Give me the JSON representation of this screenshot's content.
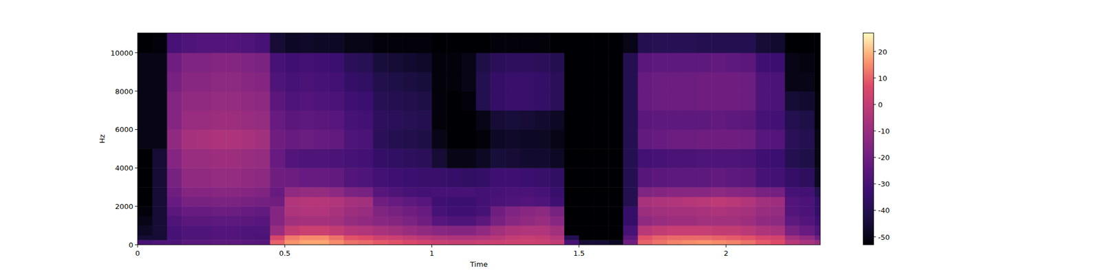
{
  "chart_data": {
    "type": "heatmap",
    "x_label": "Time",
    "y_label": "Hz",
    "xlim": [
      0,
      2.32
    ],
    "ylim": [
      0,
      11025
    ],
    "xticks": [
      0,
      0.5,
      1,
      1.5,
      2
    ],
    "yticks": [
      0,
      2000,
      4000,
      6000,
      8000,
      10000
    ],
    "x_bins": [
      0,
      0.05,
      0.1,
      0.15,
      0.2,
      0.25,
      0.3,
      0.35,
      0.4,
      0.45,
      0.5,
      0.55,
      0.6,
      0.65,
      0.7,
      0.75,
      0.8,
      0.85,
      0.9,
      0.95,
      1,
      1.05,
      1.1,
      1.15,
      1.2,
      1.25,
      1.3,
      1.35,
      1.4,
      1.45,
      1.5,
      1.55,
      1.6,
      1.65,
      1.7,
      1.75,
      1.8,
      1.85,
      1.9,
      1.95,
      2,
      2.05,
      2.1,
      2.15,
      2.2,
      2.25,
      2.3,
      2.32
    ],
    "y_bins": [
      0,
      250,
      500,
      1000,
      1500,
      2000,
      2500,
      3000,
      4000,
      5000,
      6000,
      7000,
      8000,
      9000,
      10000,
      11025
    ],
    "cells": [
      [
        -30,
        -28,
        -28,
        -25,
        -25,
        -24,
        -24,
        -25,
        -26,
        10,
        16,
        18,
        18,
        15,
        12,
        11,
        9,
        8,
        6,
        4,
        2,
        1,
        1,
        2,
        2,
        3,
        3,
        2,
        0,
        -30,
        -45,
        -45,
        -48,
        -20,
        10,
        12,
        14,
        15,
        16,
        15,
        14,
        12,
        9,
        7,
        -2,
        -6,
        -10
      ],
      [
        -45,
        -45,
        -30,
        -28,
        -28,
        -27,
        -27,
        -28,
        -29,
        5,
        13,
        15,
        15,
        12,
        8,
        7,
        3,
        2,
        0,
        -2,
        -4,
        -5,
        -5,
        -4,
        -2,
        0,
        1,
        0,
        -3,
        -40,
        -53,
        -53,
        -53,
        -25,
        8,
        10,
        11,
        11,
        11,
        10,
        9,
        8,
        5,
        4,
        -8,
        -12,
        -20
      ],
      [
        -48,
        -45,
        -30,
        -28,
        -28,
        -27,
        -27,
        -28,
        -28,
        -10,
        0,
        2,
        2,
        0,
        -3,
        -4,
        -6,
        -8,
        -10,
        -12,
        -14,
        -15,
        -15,
        -12,
        -8,
        -5,
        -4,
        -4,
        -8,
        -53,
        -53,
        -53,
        -53,
        -30,
        -2,
        0,
        1,
        1,
        1,
        0,
        0,
        -2,
        -5,
        -6,
        -18,
        -22,
        -28
      ],
      [
        -50,
        -45,
        -28,
        -25,
        -25,
        -24,
        -24,
        -25,
        -26,
        -15,
        -8,
        -7,
        -7,
        -8,
        -11,
        -12,
        -14,
        -15,
        -17,
        -20,
        -26,
        -28,
        -28,
        -25,
        -18,
        -14,
        -12,
        -10,
        -14,
        -53,
        -53,
        -53,
        -53,
        -35,
        -12,
        -10,
        -9,
        -9,
        -8,
        -8,
        -8,
        -9,
        -12,
        -13,
        -24,
        -27,
        -32
      ],
      [
        -52,
        -45,
        -25,
        -22,
        -22,
        -21,
        -21,
        -22,
        -23,
        -15,
        -5,
        -4,
        -4,
        -6,
        -9,
        -10,
        -16,
        -18,
        -20,
        -22,
        -30,
        -32,
        -32,
        -30,
        -20,
        -16,
        -14,
        -13,
        -18,
        -53,
        -53,
        -53,
        -53,
        -35,
        -9,
        -8,
        -7,
        -7,
        -6,
        -5,
        -6,
        -7,
        -10,
        -11,
        -27,
        -29,
        -35
      ],
      [
        -53,
        -45,
        -22,
        -18,
        -18,
        -17,
        -17,
        -18,
        -19,
        -20,
        -4,
        -3,
        -3,
        -4,
        -7,
        -8,
        -20,
        -22,
        -24,
        -26,
        -32,
        -33,
        -33,
        -31,
        -29,
        -28,
        -27,
        -28,
        -32,
        -53,
        -53,
        -53,
        -53,
        -40,
        -6,
        -5,
        -4,
        -3,
        -2,
        -1,
        -2,
        -4,
        -8,
        -9,
        -27,
        -29,
        -35
      ],
      [
        -53,
        -45,
        -20,
        -15,
        -15,
        -14,
        -14,
        -15,
        -16,
        -22,
        -12,
        -11,
        -11,
        -13,
        -17,
        -18,
        -26,
        -28,
        -30,
        -31,
        -30,
        -30,
        -30,
        -31,
        -30,
        -29,
        -29,
        -30,
        -34,
        -53,
        -53,
        -53,
        -53,
        -40,
        -16,
        -15,
        -14,
        -14,
        -14,
        -13,
        -14,
        -15,
        -18,
        -19,
        -30,
        -31,
        -40
      ],
      [
        -53,
        -45,
        -18,
        -12,
        -12,
        -11,
        -11,
        -12,
        -13,
        -20,
        -21,
        -22,
        -22,
        -23,
        -27,
        -28,
        -31,
        -32,
        -33,
        -34,
        -34,
        -35,
        -36,
        -35,
        -32,
        -32,
        -33,
        -34,
        -36,
        -53,
        -53,
        -53,
        -53,
        -40,
        -26,
        -25,
        -24,
        -24,
        -24,
        -23,
        -24,
        -25,
        -30,
        -31,
        -35,
        -37,
        -48
      ],
      [
        -53,
        -45,
        -15,
        -10,
        -10,
        -9,
        -9,
        -10,
        -11,
        -22,
        -27,
        -28,
        -28,
        -29,
        -30,
        -31,
        -35,
        -36,
        -37,
        -38,
        -45,
        -50,
        -50,
        -48,
        -44,
        -45,
        -46,
        -46,
        -48,
        -53,
        -53,
        -53,
        -53,
        -40,
        -31,
        -30,
        -29,
        -29,
        -28,
        -28,
        -28,
        -29,
        -32,
        -33,
        -40,
        -42,
        -50
      ],
      [
        -50,
        -50,
        -12,
        -7,
        -6,
        -5,
        -5,
        -6,
        -8,
        -20,
        -22,
        -21,
        -22,
        -23,
        -28,
        -29,
        -38,
        -40,
        -41,
        -42,
        -50,
        -53,
        -53,
        -52,
        -48,
        -47,
        -48,
        -48,
        -50,
        -53,
        -53,
        -53,
        -53,
        -40,
        -23,
        -22,
        -21,
        -21,
        -20,
        -20,
        -20,
        -21,
        -26,
        -27,
        -38,
        -40,
        -50
      ],
      [
        -50,
        -50,
        -15,
        -10,
        -10,
        -9,
        -9,
        -10,
        -11,
        -22,
        -25,
        -24,
        -25,
        -26,
        -30,
        -31,
        -37,
        -38,
        -39,
        -40,
        -52,
        -53,
        -53,
        -50,
        -45,
        -44,
        -45,
        -46,
        -48,
        -53,
        -53,
        -53,
        -53,
        -40,
        -25,
        -24,
        -24,
        -24,
        -24,
        -23,
        -24,
        -25,
        -30,
        -31,
        -40,
        -42,
        -52
      ],
      [
        -50,
        -50,
        -15,
        -12,
        -12,
        -11,
        -11,
        -12,
        -13,
        -25,
        -28,
        -27,
        -28,
        -29,
        -32,
        -33,
        -39,
        -40,
        -41,
        -42,
        -52,
        -53,
        -52,
        -40,
        -35,
        -34,
        -34,
        -35,
        -38,
        -53,
        -53,
        -53,
        -53,
        -40,
        -22,
        -21,
        -21,
        -21,
        -20,
        -20,
        -20,
        -21,
        -28,
        -29,
        -45,
        -46,
        -52
      ],
      [
        -50,
        -50,
        -18,
        -14,
        -14,
        -13,
        -13,
        -14,
        -15,
        -28,
        -30,
        -29,
        -30,
        -31,
        -35,
        -36,
        -41,
        -42,
        -43,
        -44,
        -52,
        -52,
        -50,
        -40,
        -35,
        -34,
        -34,
        -35,
        -38,
        -53,
        -53,
        -53,
        -53,
        -40,
        -22,
        -21,
        -21,
        -21,
        -20,
        -20,
        -20,
        -21,
        -28,
        -29,
        -50,
        -50,
        -53
      ],
      [
        -50,
        -50,
        -20,
        -16,
        -16,
        -15,
        -15,
        -16,
        -17,
        -30,
        -32,
        -31,
        -32,
        -33,
        -38,
        -39,
        -44,
        -45,
        -46,
        -47,
        -52,
        -52,
        -50,
        -42,
        -38,
        -37,
        -37,
        -38,
        -40,
        -53,
        -53,
        -53,
        -53,
        -40,
        -25,
        -24,
        -24,
        -24,
        -24,
        -23,
        -24,
        -25,
        -32,
        -33,
        -50,
        -51,
        -53
      ],
      [
        -53,
        -52,
        -30,
        -28,
        -27,
        -27,
        -27,
        -28,
        -30,
        -45,
        -48,
        -47,
        -48,
        -48,
        -50,
        -50,
        -52,
        -52,
        -52,
        -52,
        -53,
        -53,
        -53,
        -53,
        -52,
        -52,
        -52,
        -52,
        -53,
        -53,
        -53,
        -53,
        -53,
        -50,
        -40,
        -39,
        -39,
        -39,
        -40,
        -40,
        -40,
        -40,
        -45,
        -46,
        -53,
        -53,
        -53
      ]
    ],
    "colorbar": {
      "range": [
        -53,
        27
      ],
      "ticks": [
        -50,
        -40,
        -30,
        -20,
        -10,
        0,
        10,
        20
      ]
    }
  }
}
